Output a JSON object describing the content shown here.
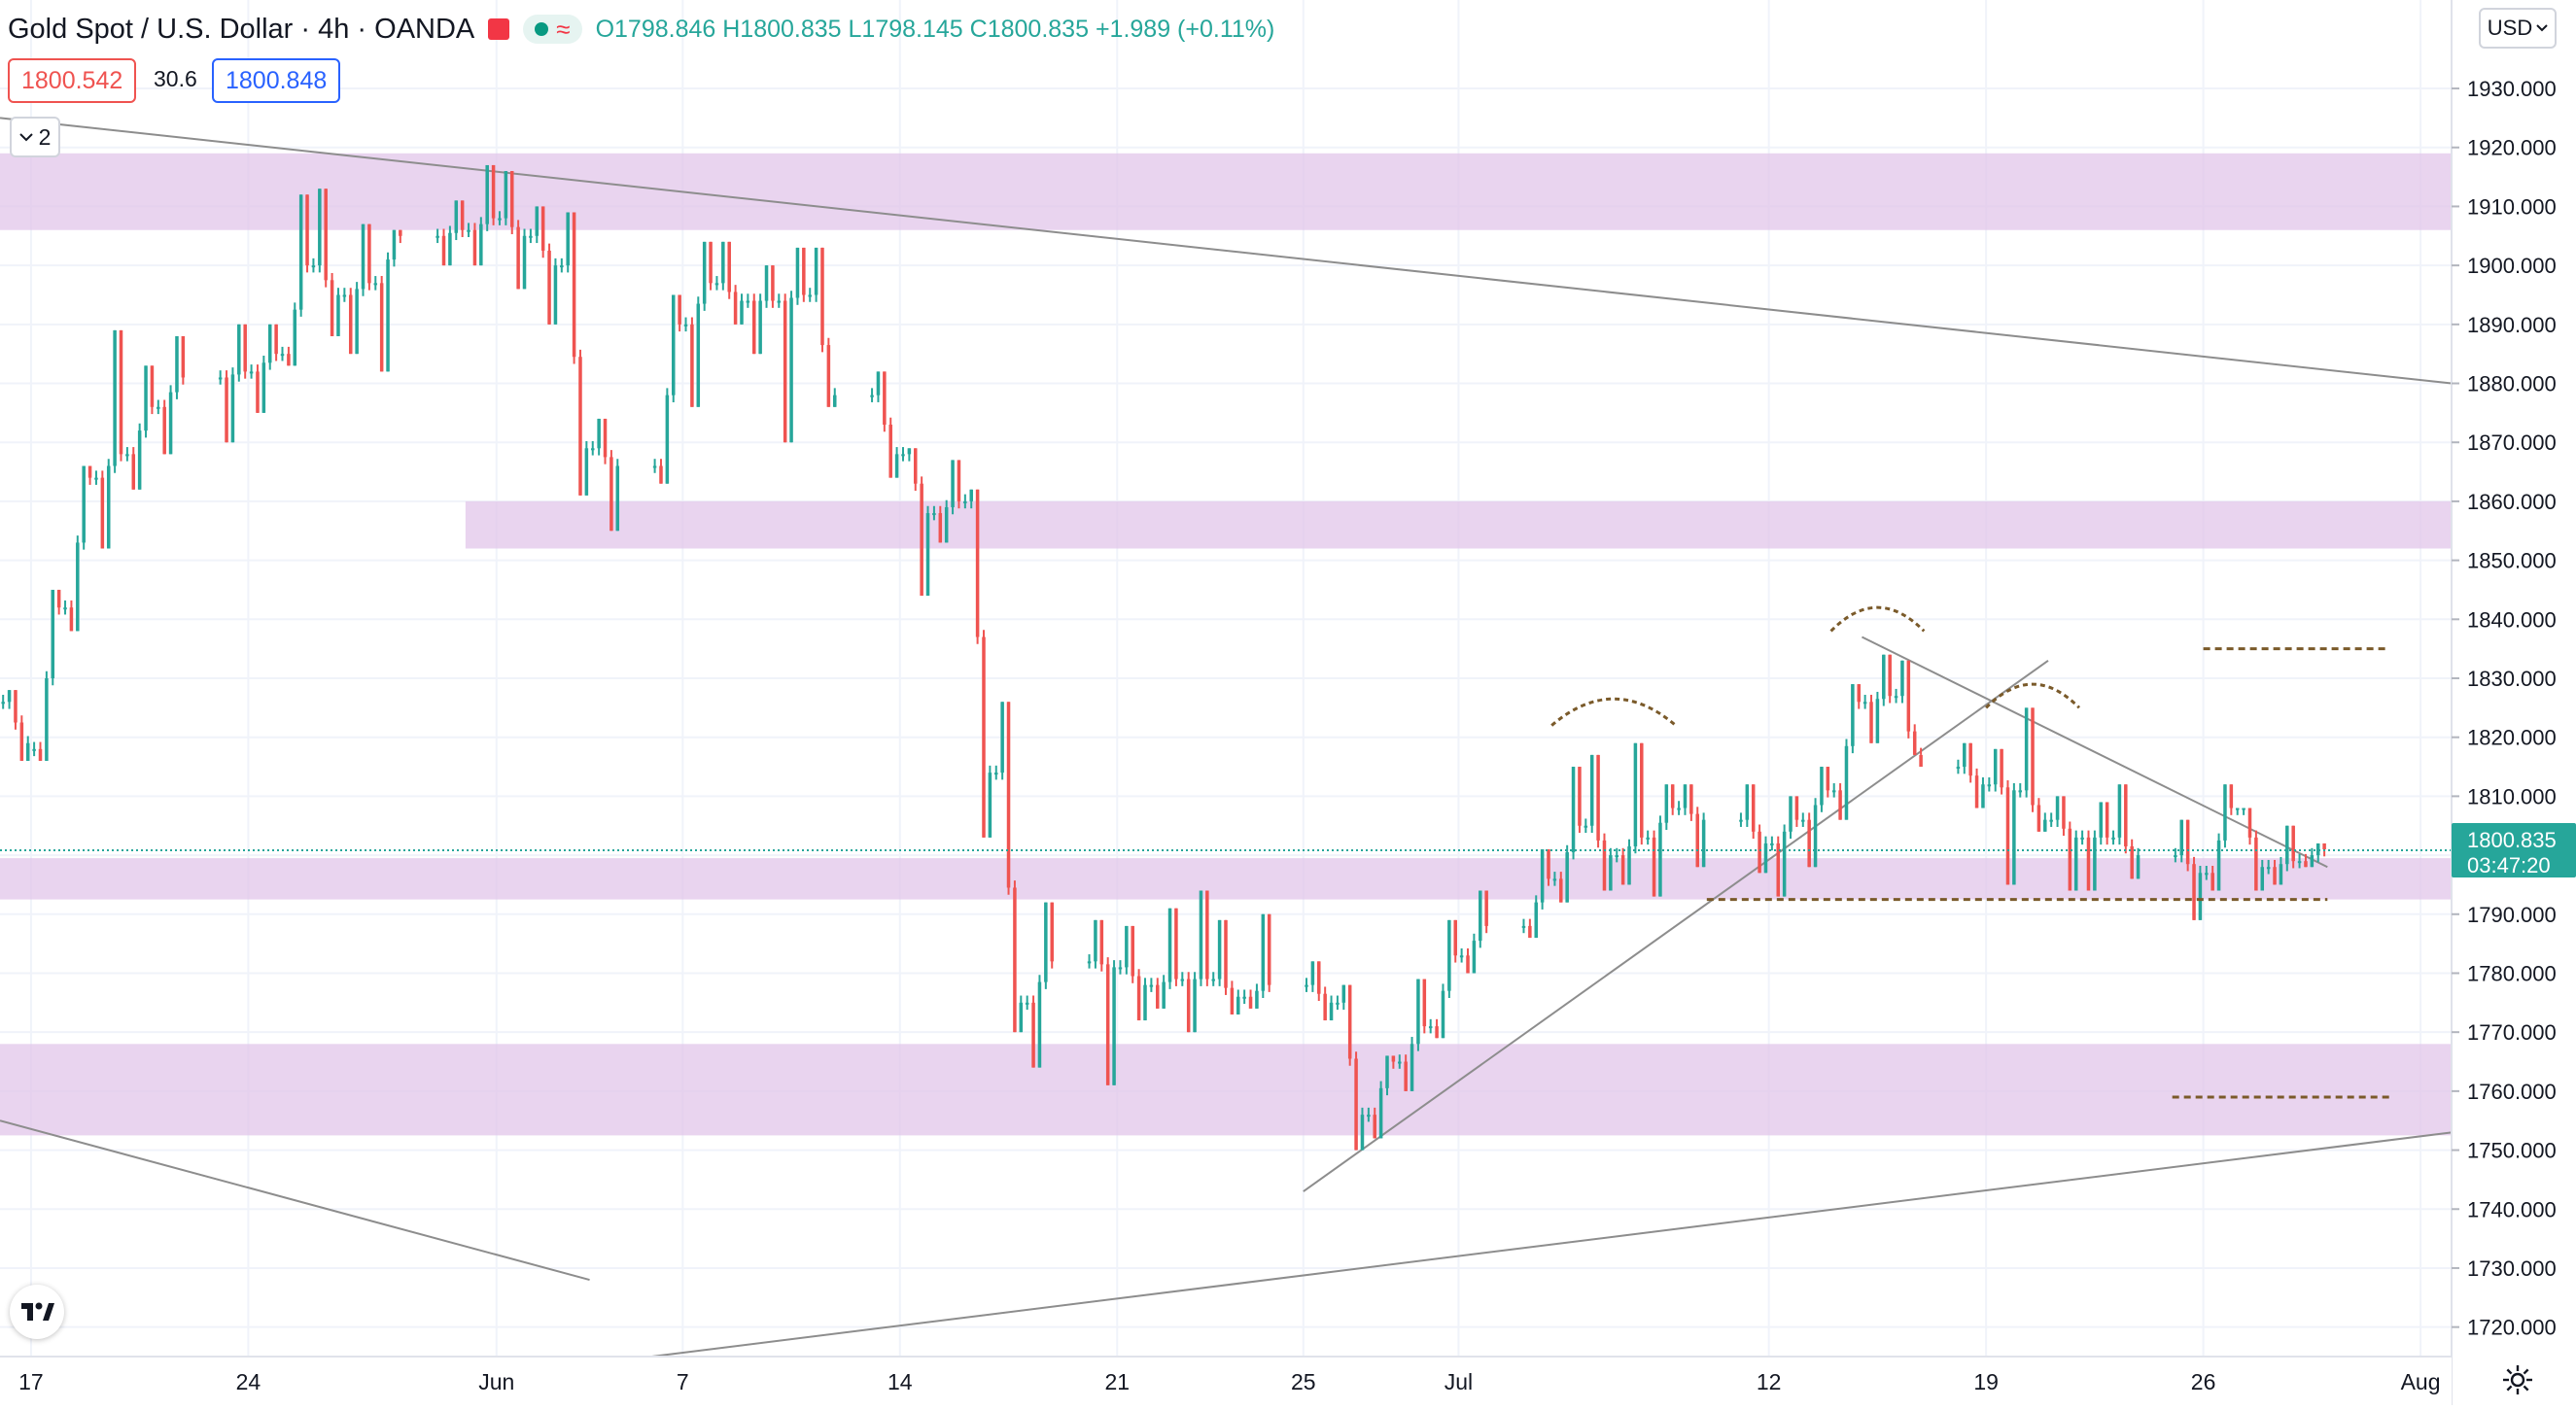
{
  "header": {
    "title": "Gold Spot / U.S. Dollar · 4h · OANDA",
    "open": "O1798.846",
    "high": "H1800.835",
    "low": "L1798.145",
    "close": "C1800.835",
    "change": "+1.989 (+0.11%)"
  },
  "quote": {
    "sell": "1800.542",
    "spread": "30.6",
    "buy": "1800.848"
  },
  "indicators_toggle": {
    "count": "2"
  },
  "price_scale": {
    "currency": "USD"
  },
  "last_price": {
    "value": "1800.835",
    "countdown": "03:47:20"
  },
  "colors": {
    "up": "#26a69a",
    "down": "#ef5350",
    "zone": "#e1c4e9",
    "trendline": "#8d8d8d",
    "pattern": "#7a5a2a",
    "price_label": "#26a69a"
  },
  "icons": {
    "logo": "tradingview-logo-icon",
    "settings": "gear-icon",
    "chevron": "chevron-down-icon",
    "alert": "flag-icon"
  },
  "chart_data": {
    "type": "candlestick",
    "title": "Gold Spot / U.S. Dollar · 4h · OANDA",
    "y_range": [
      1715,
      1945
    ],
    "yticks": [
      1720,
      1730,
      1740,
      1750,
      1760,
      1770,
      1780,
      1790,
      1800,
      1810,
      1820,
      1830,
      1840,
      1850,
      1860,
      1870,
      1880,
      1890,
      1900,
      1910,
      1920,
      1930
    ],
    "x_range": [
      "2021-05-16",
      "2021-08-03"
    ],
    "xticks": [
      {
        "label": "17",
        "date": "2021-05-17"
      },
      {
        "label": "24",
        "date": "2021-05-24"
      },
      {
        "label": "Jun",
        "date": "2021-06-01"
      },
      {
        "label": "7",
        "date": "2021-06-07"
      },
      {
        "label": "14",
        "date": "2021-06-14"
      },
      {
        "label": "21",
        "date": "2021-06-21"
      },
      {
        "label": "25",
        "date": "2021-06-27"
      },
      {
        "label": "Jul",
        "date": "2021-07-02"
      },
      {
        "label": "12",
        "date": "2021-07-12"
      },
      {
        "label": "19",
        "date": "2021-07-19"
      },
      {
        "label": "26",
        "date": "2021-07-26"
      },
      {
        "label": "Aug",
        "date": "2021-08-02"
      }
    ],
    "zones": [
      {
        "start": "2021-05-16",
        "low": 1906,
        "high": 1919
      },
      {
        "start": "2021-05-31",
        "low": 1852,
        "high": 1860
      },
      {
        "start": "2021-05-14",
        "low": 1792.5,
        "high": 1799.5
      },
      {
        "start": "2021-05-14",
        "low": 1752.5,
        "high": 1768
      }
    ],
    "trendlines": [
      {
        "from": [
          "2021-05-16",
          1925
        ],
        "to": [
          "2021-08-03",
          1880
        ]
      },
      {
        "from": [
          "2021-05-16",
          1755
        ],
        "to": [
          "2021-06-04",
          1728
        ]
      },
      {
        "from": [
          "2021-06-06",
          1715
        ],
        "to": [
          "2021-08-03",
          1753
        ]
      },
      {
        "from": [
          "2021-06-27",
          1743
        ],
        "to": [
          "2021-07-21",
          1833
        ]
      },
      {
        "from": [
          "2021-07-15",
          1837
        ],
        "to": [
          "2021-07-30",
          1798
        ]
      }
    ],
    "dashed_levels": [
      {
        "from": "2021-07-10",
        "to": "2021-07-30",
        "price": 1792.5
      },
      {
        "from": "2021-07-26",
        "to": "2021-08-01",
        "price": 1835
      },
      {
        "from": "2021-07-25",
        "to": "2021-08-01",
        "price": 1759
      }
    ],
    "arcs": [
      {
        "from": "2021-07-05",
        "to": "2021-07-09",
        "base": 1822,
        "peak": 1826.5
      },
      {
        "from": "2021-07-14",
        "to": "2021-07-17",
        "base": 1838,
        "peak": 1842
      },
      {
        "from": "2021-07-19",
        "to": "2021-07-22",
        "base": 1825,
        "peak": 1829
      }
    ],
    "candles": [
      [
        "2021-05-16",
        1826,
        1828,
        1816,
        1819
      ],
      [
        "2021-05-17",
        1818,
        1845,
        1816,
        1842
      ],
      [
        "2021-05-18",
        1842,
        1866,
        1838,
        1864
      ],
      [
        "2021-05-19",
        1864,
        1889,
        1852,
        1868
      ],
      [
        "2021-05-20",
        1868,
        1883,
        1862,
        1876
      ],
      [
        "2021-05-21",
        1876,
        1888,
        1868,
        1881
      ],
      [
        "2021-05-23",
        1881,
        1890,
        1870,
        1882
      ],
      [
        "2021-05-24",
        1882,
        1890,
        1875,
        1885
      ],
      [
        "2021-05-25",
        1885,
        1912,
        1883,
        1900
      ],
      [
        "2021-05-26",
        1900,
        1913,
        1888,
        1895
      ],
      [
        "2021-05-27",
        1895,
        1907,
        1885,
        1897
      ],
      [
        "2021-05-28",
        1897,
        1906,
        1882,
        1905
      ],
      [
        "2021-05-30",
        1905,
        1911,
        1900,
        1906
      ],
      [
        "2021-05-31",
        1906,
        1917,
        1900,
        1908
      ],
      [
        "2021-06-01",
        1908,
        1916,
        1896,
        1905
      ],
      [
        "2021-06-02",
        1905,
        1910,
        1890,
        1900
      ],
      [
        "2021-06-03",
        1900,
        1909,
        1861,
        1869
      ],
      [
        "2021-06-04",
        1869,
        1874,
        1855,
        1866
      ],
      [
        "2021-06-06",
        1866,
        1895,
        1863,
        1890
      ],
      [
        "2021-06-07",
        1890,
        1904,
        1876,
        1897
      ],
      [
        "2021-06-08",
        1897,
        1904,
        1890,
        1894
      ],
      [
        "2021-06-09",
        1894,
        1900,
        1885,
        1894
      ],
      [
        "2021-06-10",
        1894,
        1903,
        1870,
        1895
      ],
      [
        "2021-06-11",
        1895,
        1903,
        1876,
        1878
      ],
      [
        "2021-06-13",
        1878,
        1882,
        1864,
        1868
      ],
      [
        "2021-06-14",
        1868,
        1869,
        1844,
        1858
      ],
      [
        "2021-06-15",
        1858,
        1867,
        1853,
        1860
      ],
      [
        "2021-06-16",
        1860,
        1862,
        1803,
        1814
      ],
      [
        "2021-06-17",
        1814,
        1826,
        1770,
        1775
      ],
      [
        "2021-06-18",
        1775,
        1792,
        1764,
        1782
      ],
      [
        "2021-06-20",
        1782,
        1789,
        1761,
        1781
      ],
      [
        "2021-06-21",
        1781,
        1788,
        1772,
        1778
      ],
      [
        "2021-06-22",
        1778,
        1791,
        1774,
        1779
      ],
      [
        "2021-06-23",
        1779,
        1794,
        1770,
        1779
      ],
      [
        "2021-06-24",
        1779,
        1789,
        1773,
        1776
      ],
      [
        "2021-06-25",
        1776,
        1790,
        1774,
        1778
      ],
      [
        "2021-06-27",
        1778,
        1782,
        1772,
        1775
      ],
      [
        "2021-06-28",
        1775,
        1778,
        1750,
        1756
      ],
      [
        "2021-06-29",
        1756,
        1766,
        1752,
        1765
      ],
      [
        "2021-06-30",
        1765,
        1779,
        1760,
        1771
      ],
      [
        "2021-07-01",
        1771,
        1789,
        1769,
        1783
      ],
      [
        "2021-07-02",
        1783,
        1794,
        1780,
        1788
      ],
      [
        "2021-07-04",
        1788,
        1801,
        1786,
        1796
      ],
      [
        "2021-07-05",
        1796,
        1815,
        1792,
        1805
      ],
      [
        "2021-07-06",
        1805,
        1817,
        1794,
        1800
      ],
      [
        "2021-07-07",
        1800,
        1819,
        1795,
        1803
      ],
      [
        "2021-07-08",
        1803,
        1812,
        1793,
        1808
      ],
      [
        "2021-07-09",
        1808,
        1812,
        1798,
        1806
      ],
      [
        "2021-07-11",
        1806,
        1812,
        1797,
        1802
      ],
      [
        "2021-07-12",
        1802,
        1810,
        1793,
        1806
      ],
      [
        "2021-07-13",
        1806,
        1815,
        1798,
        1811
      ],
      [
        "2021-07-14",
        1811,
        1829,
        1806,
        1826
      ],
      [
        "2021-07-15",
        1826,
        1834,
        1819,
        1827
      ],
      [
        "2021-07-16",
        1827,
        1833,
        1817,
        1815
      ],
      [
        "2021-07-18",
        1815,
        1819,
        1808,
        1812
      ],
      [
        "2021-07-19",
        1812,
        1818,
        1795,
        1811
      ],
      [
        "2021-07-20",
        1811,
        1825,
        1804,
        1806
      ],
      [
        "2021-07-21",
        1806,
        1810,
        1794,
        1803
      ],
      [
        "2021-07-22",
        1803,
        1809,
        1794,
        1803
      ],
      [
        "2021-07-23",
        1803,
        1812,
        1796,
        1800
      ],
      [
        "2021-07-25",
        1800,
        1806,
        1789,
        1797
      ],
      [
        "2021-07-26",
        1797,
        1812,
        1794,
        1808
      ],
      [
        "2021-07-27",
        1808,
        1808,
        1794,
        1798
      ],
      [
        "2021-07-28",
        1798,
        1805,
        1795,
        1799
      ],
      [
        "2021-07-29",
        1799,
        1802,
        1798,
        1801
      ]
    ]
  }
}
